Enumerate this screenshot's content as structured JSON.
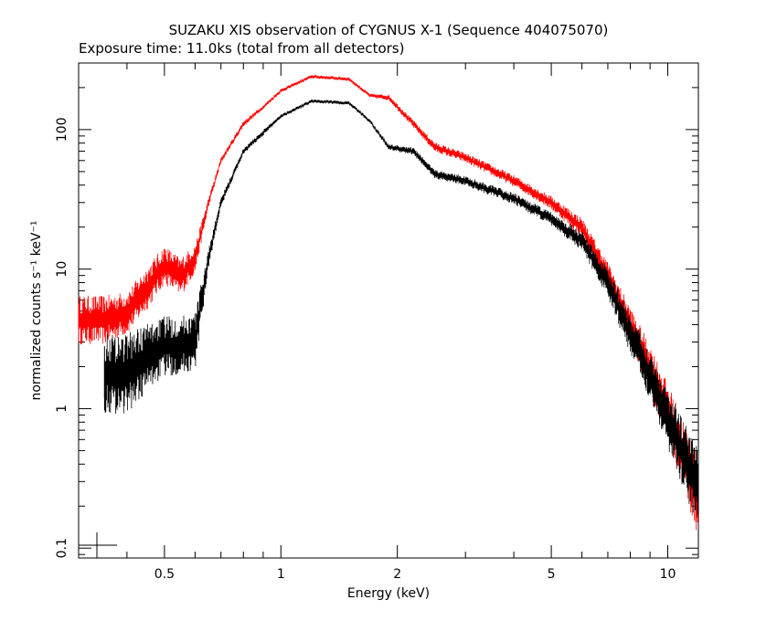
{
  "chart_data": {
    "type": "scatter",
    "title": "SUZAKU XIS observation of CYGNUS X-1 (Sequence 404075070)",
    "subtitle": "Exposure time: 11.0ks (total from all detectors)",
    "xlabel": "Energy (keV)",
    "ylabel": "normalized counts s⁻¹ keV⁻¹",
    "xscale": "log",
    "yscale": "log",
    "xlim": [
      0.3,
      12
    ],
    "ylim": [
      0.085,
      300
    ],
    "x_ticks": [
      {
        "v": 0.5,
        "label": "0.5"
      },
      {
        "v": 1,
        "label": "1"
      },
      {
        "v": 2,
        "label": "2"
      },
      {
        "v": 5,
        "label": "5"
      },
      {
        "v": 10,
        "label": "10"
      }
    ],
    "y_ticks": [
      {
        "v": 0.1,
        "label": "0.1"
      },
      {
        "v": 1,
        "label": "1"
      },
      {
        "v": 10,
        "label": "10"
      },
      {
        "v": 100,
        "label": "100"
      }
    ],
    "legend": "none",
    "grid": false,
    "series": [
      {
        "color": "#ff0000",
        "x": [
          0.3,
          0.35,
          0.4,
          0.45,
          0.5,
          0.55,
          0.6,
          0.65,
          0.7,
          0.8,
          0.9,
          1.0,
          1.2,
          1.5,
          1.7,
          1.9,
          2.2,
          2.5,
          3.0,
          4.0,
          5.0,
          6.0,
          7.0,
          8.0,
          9.0,
          10.0,
          11.0,
          12.0
        ],
        "y": [
          4.5,
          4.5,
          5.0,
          7.5,
          11.0,
          9.0,
          12.0,
          30.0,
          60.0,
          110.0,
          145.0,
          190.0,
          240.0,
          230.0,
          175.0,
          170.0,
          110.0,
          75.0,
          63.0,
          43.0,
          30.0,
          20.0,
          9.0,
          4.0,
          2.0,
          1.0,
          0.5,
          0.25
        ],
        "ey_frac": [
          0.25,
          0.25,
          0.22,
          0.22,
          0.2,
          0.2,
          0.15,
          0.05,
          0.03,
          0.03,
          0.02,
          0.02,
          0.02,
          0.02,
          0.02,
          0.03,
          0.04,
          0.05,
          0.05,
          0.06,
          0.07,
          0.1,
          0.15,
          0.2,
          0.25,
          0.3,
          0.35,
          0.4
        ]
      },
      {
        "color": "#000000",
        "x": [
          0.35,
          0.4,
          0.45,
          0.5,
          0.55,
          0.6,
          0.65,
          0.7,
          0.8,
          0.9,
          1.0,
          1.2,
          1.5,
          1.7,
          1.9,
          2.2,
          2.5,
          3.0,
          4.0,
          5.0,
          6.0,
          7.0,
          8.0,
          9.0,
          10.0,
          11.0,
          12.0
        ],
        "y": [
          2.0,
          2.0,
          2.5,
          3.0,
          3.0,
          3.2,
          12.0,
          30.0,
          70.0,
          95.0,
          125.0,
          160.0,
          155.0,
          115.0,
          75.0,
          70.0,
          48.0,
          43.0,
          32.0,
          23.0,
          16.0,
          8.0,
          3.5,
          1.8,
          0.9,
          0.5,
          0.3
        ],
        "ey_frac": [
          0.4,
          0.4,
          0.35,
          0.3,
          0.3,
          0.3,
          0.1,
          0.05,
          0.03,
          0.03,
          0.02,
          0.02,
          0.02,
          0.02,
          0.03,
          0.04,
          0.05,
          0.05,
          0.06,
          0.07,
          0.1,
          0.15,
          0.2,
          0.25,
          0.3,
          0.35,
          0.4
        ]
      }
    ]
  }
}
